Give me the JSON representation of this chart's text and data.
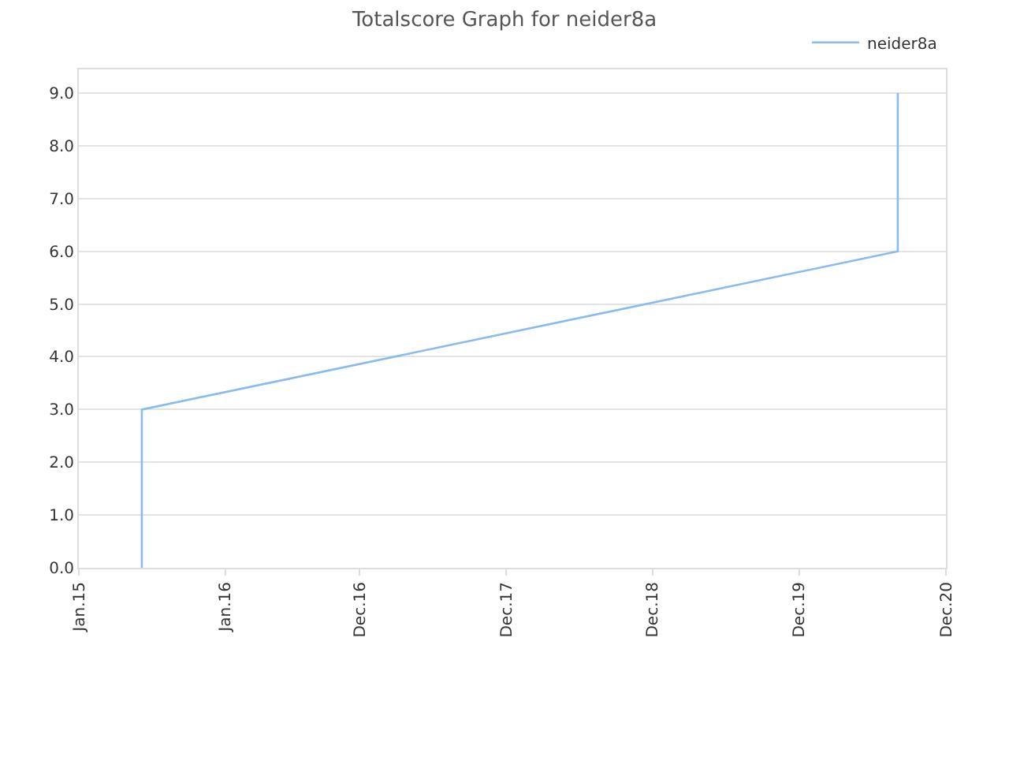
{
  "chart_data": {
    "type": "line",
    "title": "Totalscore Graph for neider8a",
    "x": [
      "2015-06-07",
      "2015-06-07",
      "2020-08-03",
      "2020-08-03"
    ],
    "series": [
      {
        "name": "neider8a",
        "color": "#88bbee",
        "values": [
          0,
          3,
          6,
          9
        ]
      }
    ],
    "xlim": [
      "2015-01-01",
      "2020-12-01"
    ],
    "xticks": [
      {
        "value": "2015-01-01",
        "label": "Jan.15"
      },
      {
        "value": "2016-01-01",
        "label": "Jan.16"
      },
      {
        "value": "2016-12-01",
        "label": "Dec.16"
      },
      {
        "value": "2017-12-01",
        "label": "Dec.17"
      },
      {
        "value": "2018-12-01",
        "label": "Dec.18"
      },
      {
        "value": "2019-12-01",
        "label": "Dec.19"
      },
      {
        "value": "2020-12-01",
        "label": "Dec.20"
      }
    ],
    "ylim": [
      0,
      9.45
    ],
    "yticks": [
      {
        "value": 0,
        "label": "0.0"
      },
      {
        "value": 1,
        "label": "1.0"
      },
      {
        "value": 2,
        "label": "2.0"
      },
      {
        "value": 3,
        "label": "3.0"
      },
      {
        "value": 4,
        "label": "4.0"
      },
      {
        "value": 5,
        "label": "5.0"
      },
      {
        "value": 6,
        "label": "6.0"
      },
      {
        "value": 7,
        "label": "7.0"
      },
      {
        "value": 8,
        "label": "8.0"
      },
      {
        "value": 9,
        "label": "9.0"
      }
    ],
    "grid": "y",
    "legend": "top right",
    "marker": "none",
    "line_style": "solid"
  }
}
